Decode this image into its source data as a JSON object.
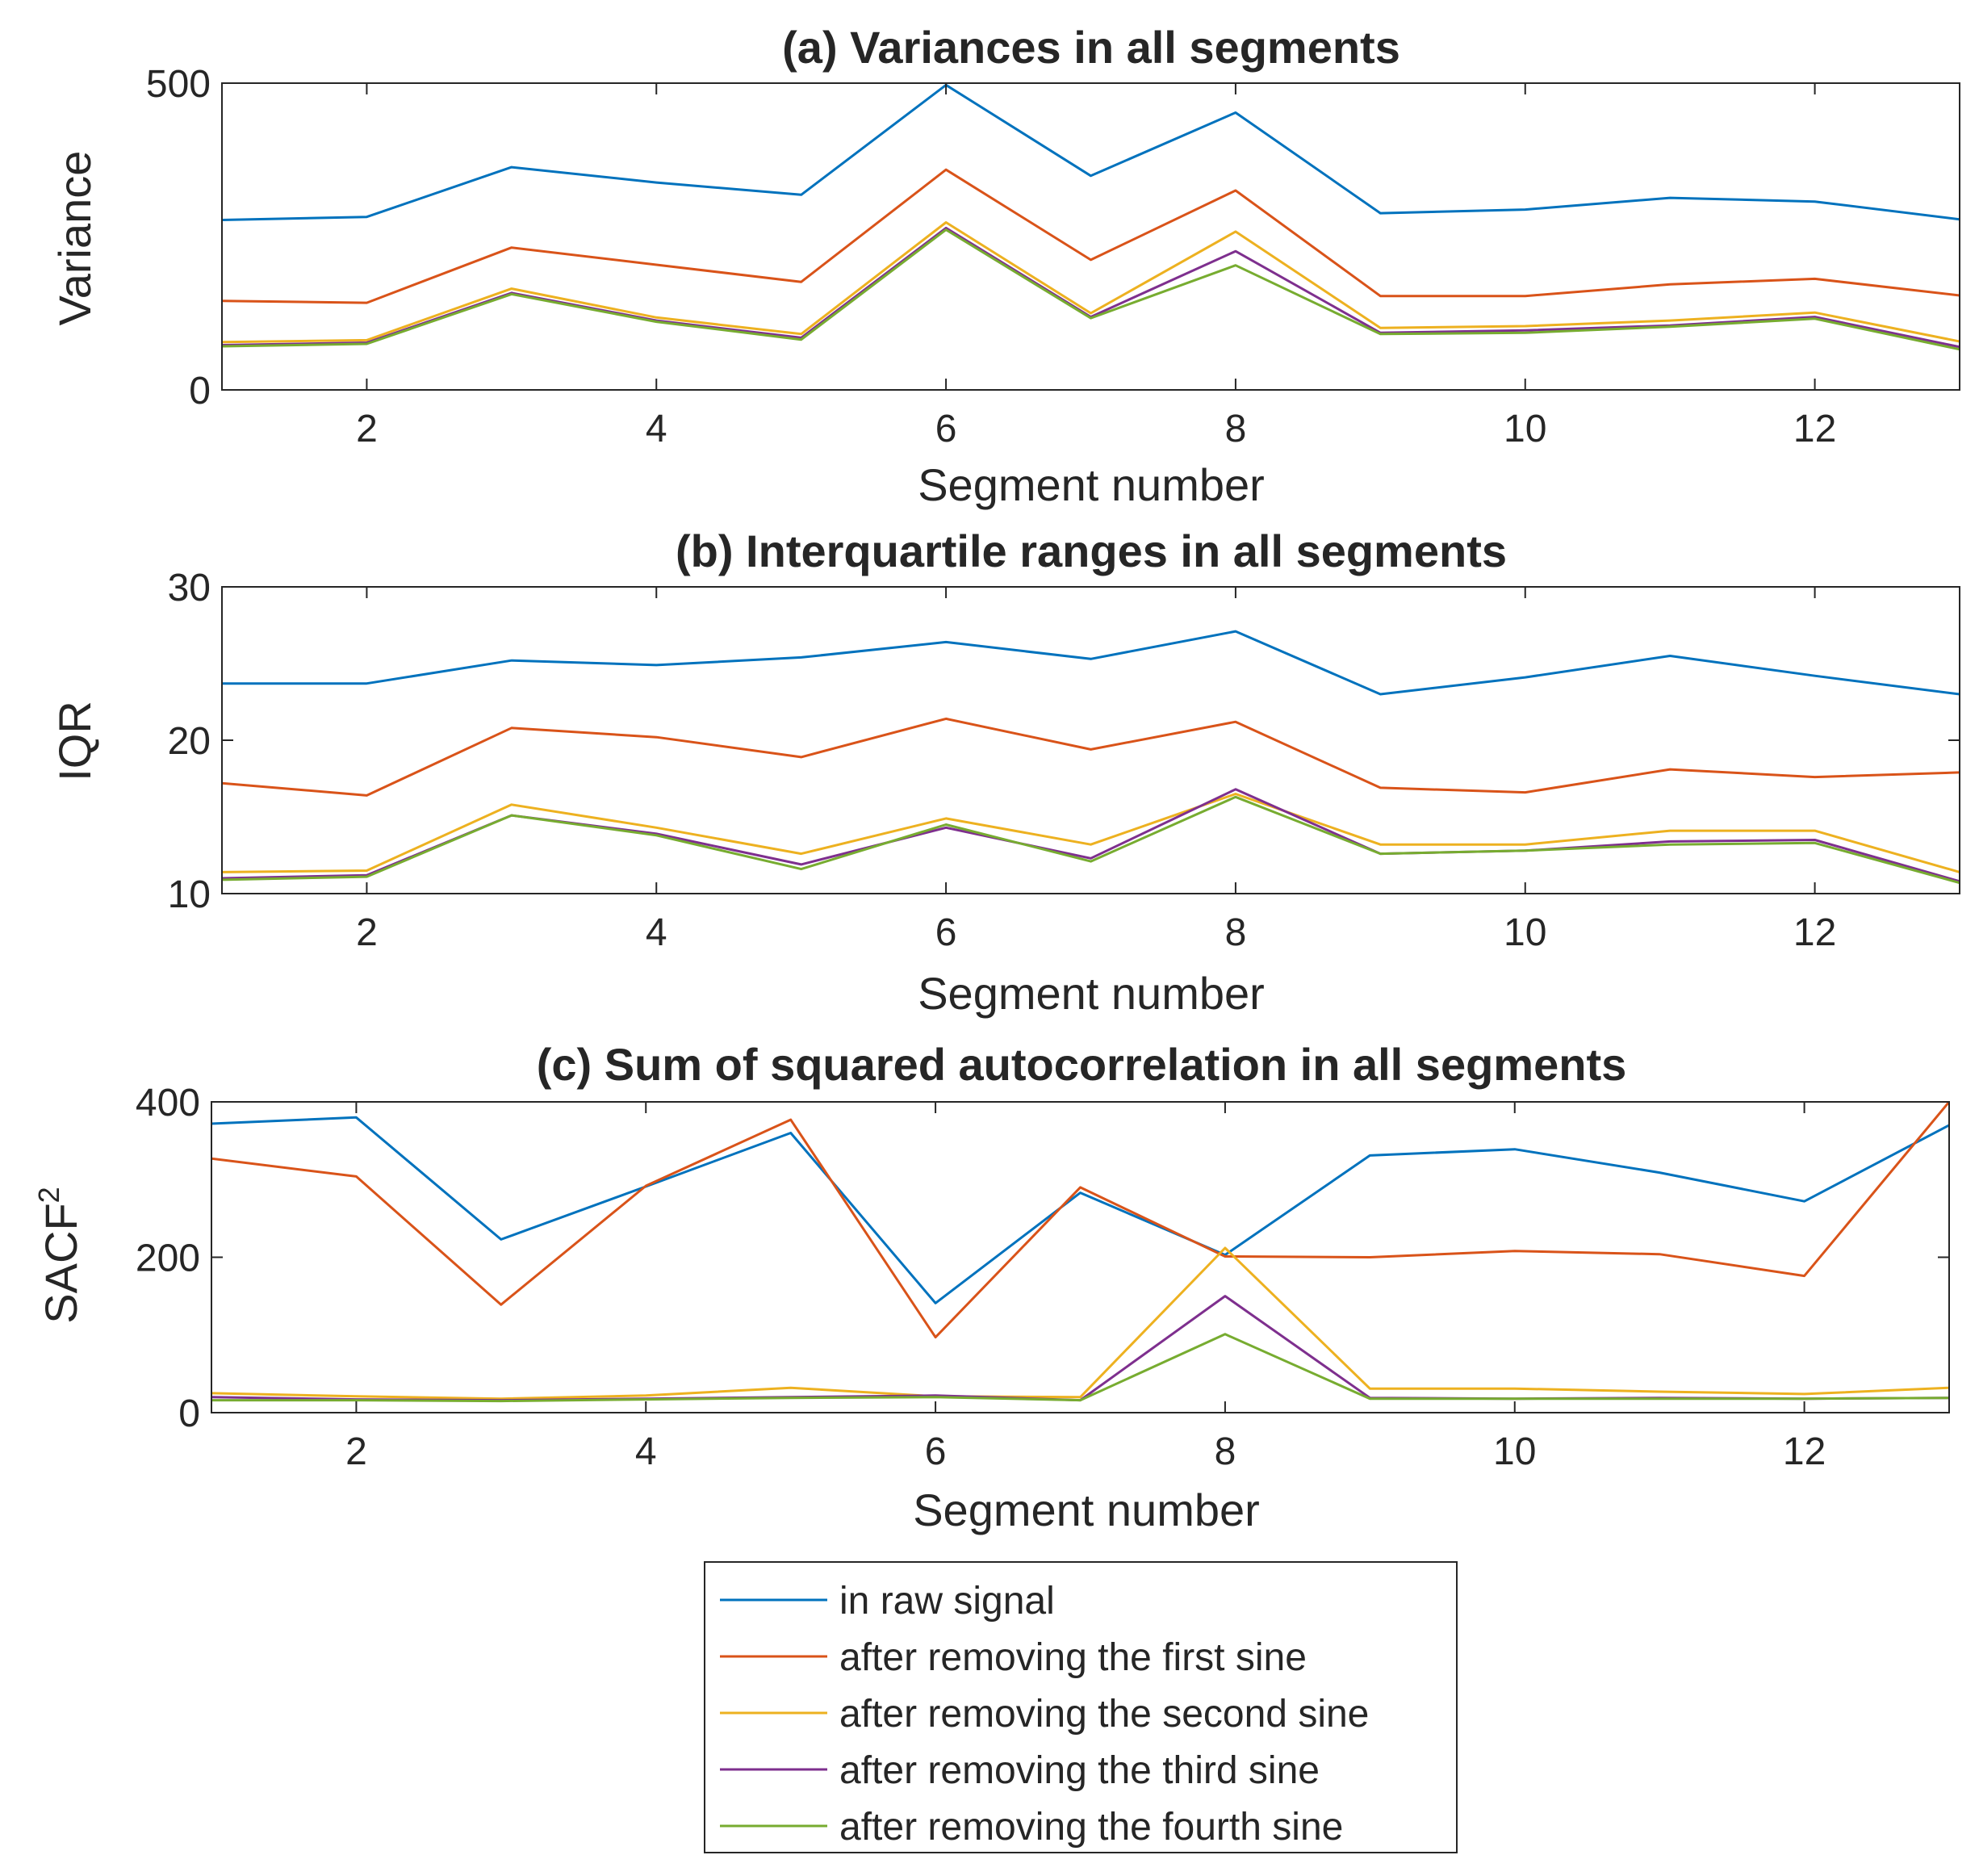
{
  "chart_data": [
    {
      "type": "line",
      "title": "(a) Variances in all segments",
      "xlabel": "Segment number",
      "ylabel": "Variance",
      "xlim": [
        1,
        13
      ],
      "ylim": [
        0,
        500
      ],
      "xticks": [
        2,
        4,
        6,
        8,
        10,
        12
      ],
      "yticks": [
        0,
        500
      ],
      "x": [
        1,
        2,
        3,
        4,
        5,
        6,
        7,
        8,
        9,
        10,
        11,
        12,
        13
      ],
      "series": [
        {
          "name": "in raw signal",
          "values": [
            277,
            282,
            363,
            338,
            318,
            497,
            349,
            452,
            288,
            294,
            313,
            307,
            278
          ]
        },
        {
          "name": "after removing the first sine",
          "values": [
            145,
            142,
            232,
            204,
            176,
            359,
            212,
            325,
            153,
            153,
            172,
            181,
            154
          ]
        },
        {
          "name": "after removing the second sine",
          "values": [
            78,
            81,
            165,
            118,
            91,
            273,
            125,
            258,
            101,
            104,
            113,
            126,
            79
          ]
        },
        {
          "name": "after removing the third sine",
          "values": [
            73,
            77,
            158,
            113,
            85,
            264,
            119,
            226,
            93,
            97,
            105,
            119,
            70
          ]
        },
        {
          "name": "after removing the fourth sine",
          "values": [
            71,
            75,
            156,
            111,
            82,
            261,
            117,
            203,
            91,
            93,
            103,
            116,
            66
          ]
        }
      ]
    },
    {
      "type": "line",
      "title": "(b) Interquartile ranges in all segments",
      "xlabel": "Segment number",
      "ylabel": "IQR",
      "xlim": [
        1,
        13
      ],
      "ylim": [
        10,
        30
      ],
      "xticks": [
        2,
        4,
        6,
        8,
        10,
        12
      ],
      "yticks": [
        10,
        20,
        30
      ],
      "x": [
        1,
        2,
        3,
        4,
        5,
        6,
        7,
        8,
        9,
        10,
        11,
        12,
        13
      ],
      "series": [
        {
          "name": "in raw signal",
          "values": [
            23.7,
            23.7,
            25.2,
            24.9,
            25.4,
            26.4,
            25.3,
            27.1,
            23.0,
            24.1,
            25.5,
            24.2,
            23.0
          ]
        },
        {
          "name": "after removing the first sine",
          "values": [
            17.2,
            16.4,
            20.8,
            20.2,
            18.9,
            21.4,
            19.4,
            21.2,
            16.9,
            16.6,
            18.1,
            17.6,
            17.9
          ]
        },
        {
          "name": "after removing the second sine",
          "values": [
            11.4,
            11.5,
            15.8,
            14.3,
            12.6,
            14.9,
            13.2,
            16.5,
            13.2,
            13.2,
            14.1,
            14.1,
            11.4
          ]
        },
        {
          "name": "after removing the third sine",
          "values": [
            11.0,
            11.2,
            15.1,
            13.9,
            11.9,
            14.3,
            12.3,
            16.8,
            12.6,
            12.8,
            13.4,
            13.5,
            10.8
          ]
        },
        {
          "name": "after removing the fourth sine",
          "values": [
            10.9,
            11.1,
            15.1,
            13.8,
            11.6,
            14.5,
            12.1,
            16.3,
            12.6,
            12.8,
            13.2,
            13.3,
            10.7
          ]
        }
      ]
    },
    {
      "type": "line",
      "title": "(c) Sum of squared autocorrelation in all segments",
      "xlabel": "Segment number",
      "ylabel": "SACF",
      "ylabel_sup": "2",
      "xlim": [
        1,
        13
      ],
      "ylim": [
        0,
        400
      ],
      "xticks": [
        2,
        4,
        6,
        8,
        10,
        12
      ],
      "yticks": [
        0,
        200,
        400
      ],
      "x": [
        1,
        2,
        3,
        4,
        5,
        6,
        7,
        8,
        9,
        10,
        11,
        12,
        13
      ],
      "series": [
        {
          "name": "in raw signal",
          "values": [
            372,
            380,
            223,
            291,
            360,
            141,
            283,
            203,
            331,
            339,
            309,
            272,
            370
          ]
        },
        {
          "name": "after removing the first sine",
          "values": [
            327,
            304,
            139,
            292,
            377,
            97,
            290,
            201,
            200,
            208,
            204,
            176,
            400
          ]
        },
        {
          "name": "after removing the second sine",
          "values": [
            25,
            21,
            18,
            22,
            32,
            21,
            20,
            212,
            31,
            31,
            27,
            24,
            32
          ]
        },
        {
          "name": "after removing the third sine",
          "values": [
            20,
            17,
            16,
            18,
            20,
            22,
            16,
            150,
            19,
            18,
            19,
            18,
            19
          ]
        },
        {
          "name": "after removing the fourth sine",
          "values": [
            16,
            16,
            15,
            17,
            19,
            20,
            16,
            101,
            18,
            18,
            18,
            18,
            19
          ]
        }
      ]
    }
  ],
  "legend": {
    "entries": [
      {
        "label": "in raw signal",
        "color": "#0072BD"
      },
      {
        "label": "after removing the first sine",
        "color": "#D95319"
      },
      {
        "label": "after removing the second sine",
        "color": "#EDB120"
      },
      {
        "label": "after removing the third sine",
        "color": "#7E2F8E"
      },
      {
        "label": "after removing the fourth sine",
        "color": "#77AC30"
      }
    ]
  }
}
